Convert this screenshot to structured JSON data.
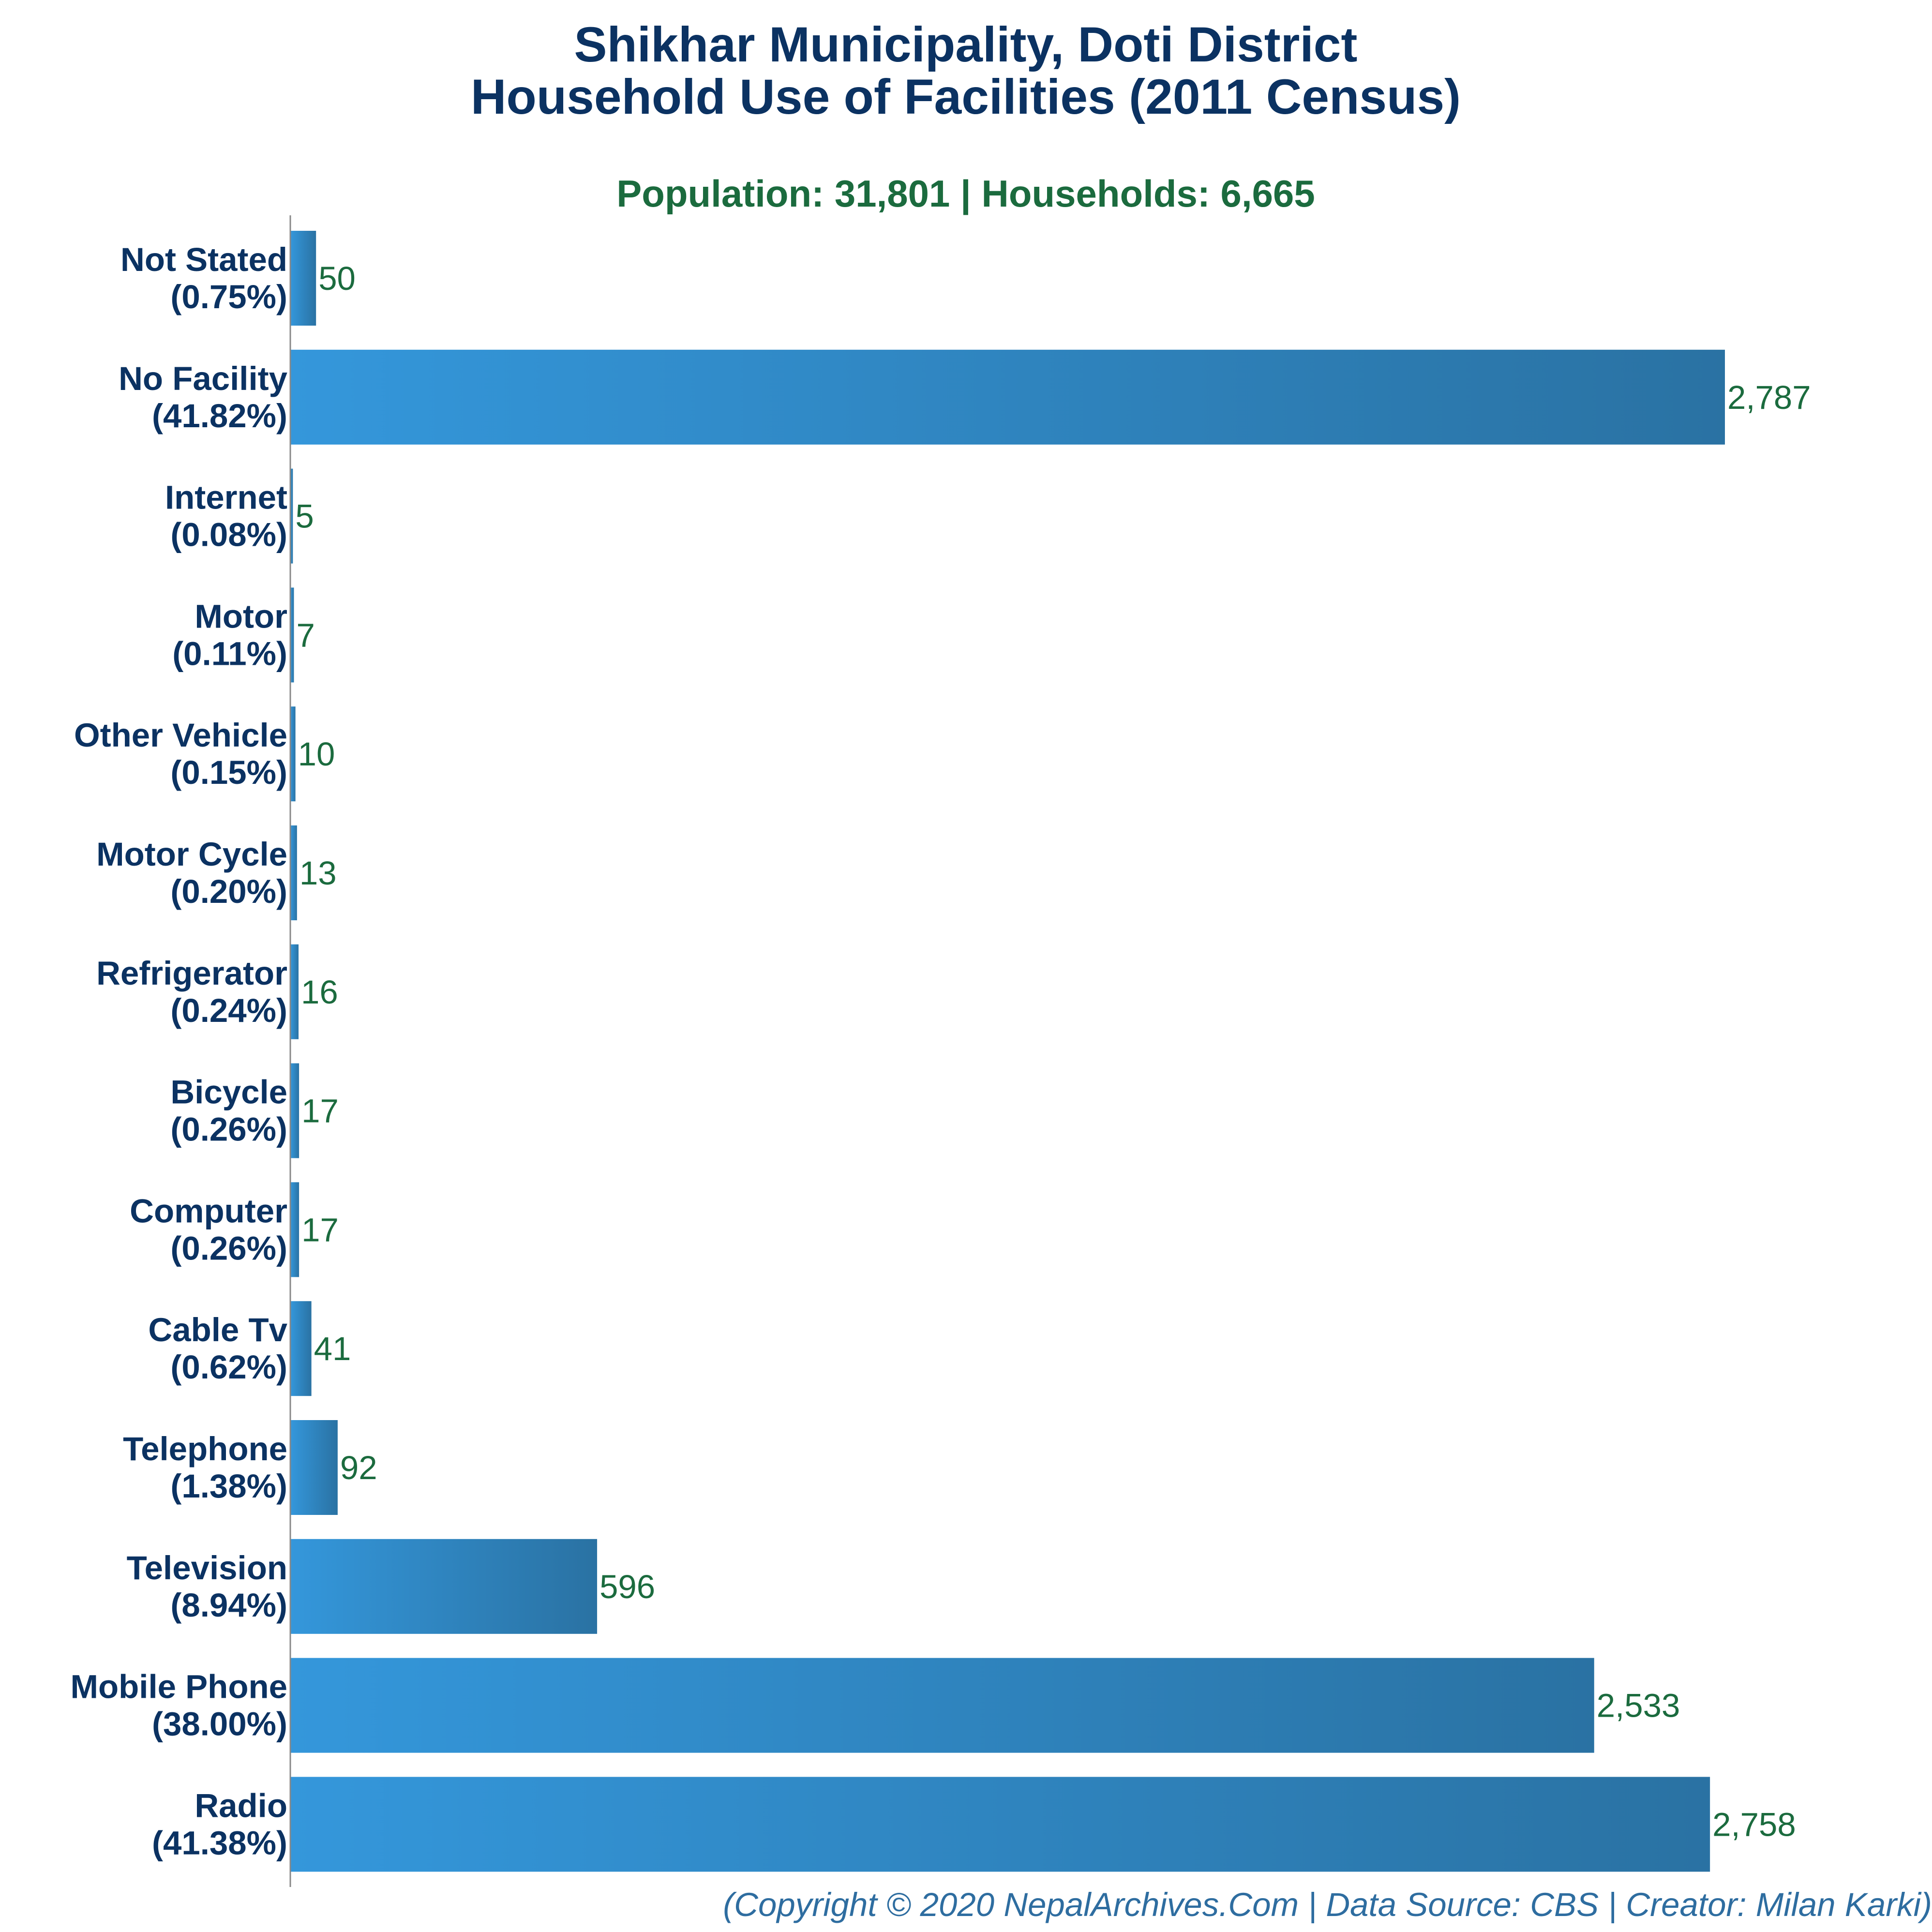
{
  "header": {
    "title_line1": "Shikhar Municipality, Doti District",
    "title_line2": "Household Use of Facilities (2011 Census)",
    "subtitle": "Population: 31,801 | Households: 6,665"
  },
  "footer": {
    "credit": "(Copyright © 2020 NepalArchives.Com | Data Source: CBS | Creator: Milan Karki)"
  },
  "colors": {
    "bar_start": "#3497db",
    "bar_end": "#2a72a3",
    "title": "#0b3262",
    "subtitle": "#1b6b3e",
    "value_label": "#1b6b3e",
    "footer": "#2e6da0",
    "axis": "#888888"
  },
  "chart_data": {
    "type": "bar",
    "orientation": "horizontal",
    "title": "Shikhar Municipality, Doti District Household Use of Facilities (2011 Census)",
    "subtitle": "Population: 31,801 | Households: 6,665",
    "xlabel": "",
    "ylabel": "",
    "grid": false,
    "legend": "none",
    "xlim": [
      0,
      2787
    ],
    "bars": [
      {
        "category": "Not Stated",
        "percent_label": "(0.75%)",
        "value": 50,
        "value_label": "50"
      },
      {
        "category": "No Facility",
        "percent_label": "(41.82%)",
        "value": 2787,
        "value_label": "2,787"
      },
      {
        "category": "Internet",
        "percent_label": "(0.08%)",
        "value": 5,
        "value_label": "5"
      },
      {
        "category": "Motor",
        "percent_label": "(0.11%)",
        "value": 7,
        "value_label": "7"
      },
      {
        "category": "Other Vehicle",
        "percent_label": "(0.15%)",
        "value": 10,
        "value_label": "10"
      },
      {
        "category": "Motor Cycle",
        "percent_label": "(0.20%)",
        "value": 13,
        "value_label": "13"
      },
      {
        "category": "Refrigerator",
        "percent_label": "(0.24%)",
        "value": 16,
        "value_label": "16"
      },
      {
        "category": "Bicycle",
        "percent_label": "(0.26%)",
        "value": 17,
        "value_label": "17"
      },
      {
        "category": "Computer",
        "percent_label": "(0.26%)",
        "value": 17,
        "value_label": "17"
      },
      {
        "category": "Cable Tv",
        "percent_label": "(0.62%)",
        "value": 41,
        "value_label": "41"
      },
      {
        "category": "Telephone",
        "percent_label": "(1.38%)",
        "value": 92,
        "value_label": "92"
      },
      {
        "category": "Television",
        "percent_label": "(8.94%)",
        "value": 596,
        "value_label": "596"
      },
      {
        "category": "Mobile Phone",
        "percent_label": "(38.00%)",
        "value": 2533,
        "value_label": "2,533"
      },
      {
        "category": "Radio",
        "percent_label": "(41.38%)",
        "value": 2758,
        "value_label": "2,758"
      }
    ]
  }
}
